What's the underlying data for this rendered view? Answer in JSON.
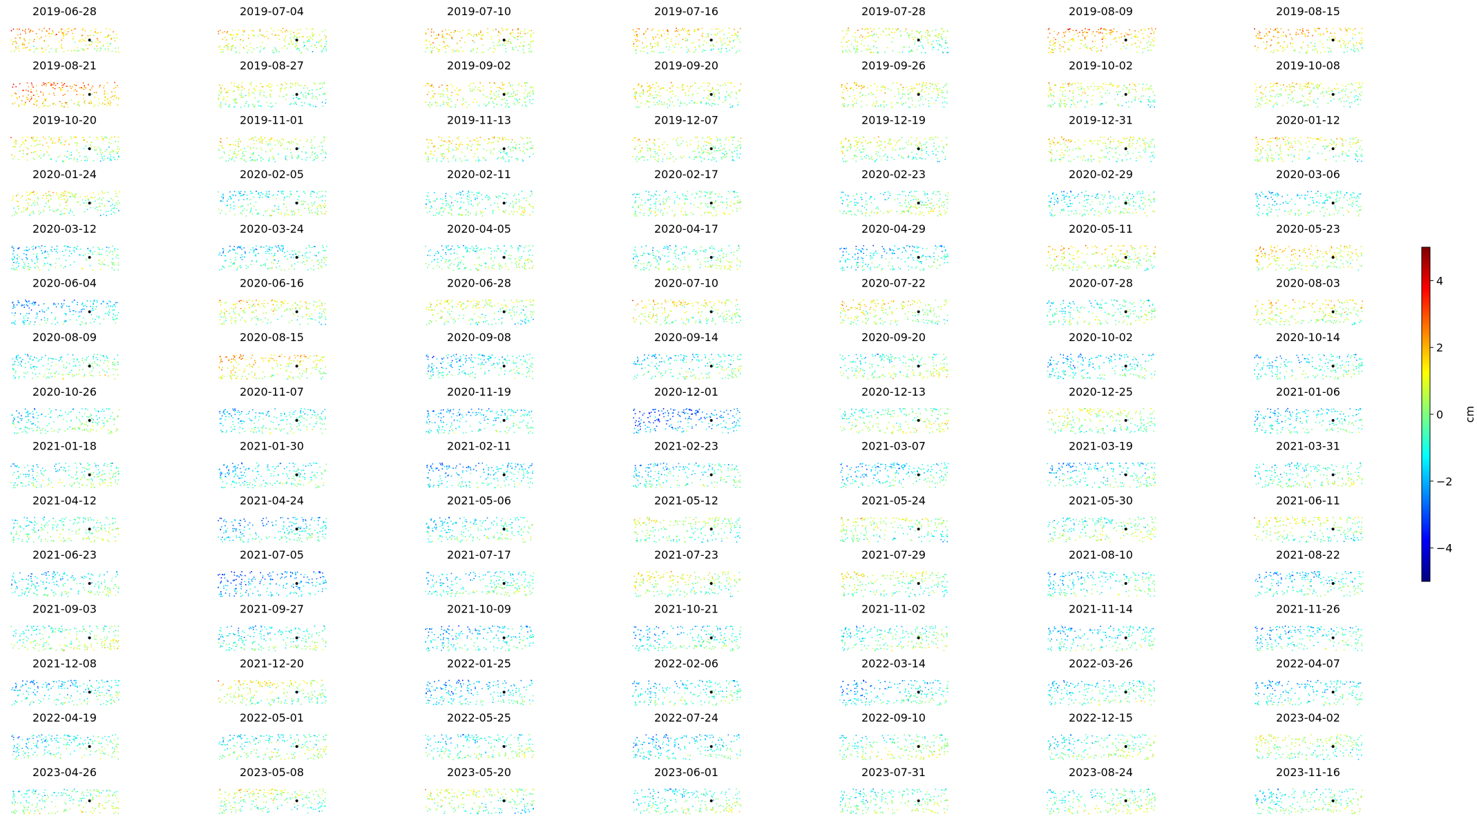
{
  "chart_data": {
    "type": "scatter",
    "title": "",
    "panel_titles": [
      "2019-06-28",
      "2019-07-04",
      "2019-07-10",
      "2019-07-16",
      "2019-07-28",
      "2019-08-09",
      "2019-08-15",
      "2019-08-21",
      "2019-08-27",
      "2019-09-02",
      "2019-09-20",
      "2019-09-26",
      "2019-10-02",
      "2019-10-08",
      "2019-10-20",
      "2019-11-01",
      "2019-11-13",
      "2019-12-07",
      "2019-12-19",
      "2019-12-31",
      "2020-01-12",
      "2020-01-24",
      "2020-02-05",
      "2020-02-11",
      "2020-02-17",
      "2020-02-23",
      "2020-02-29",
      "2020-03-06",
      "2020-03-12",
      "2020-03-24",
      "2020-04-05",
      "2020-04-17",
      "2020-04-29",
      "2020-05-11",
      "2020-05-23",
      "2020-06-04",
      "2020-06-16",
      "2020-06-28",
      "2020-07-10",
      "2020-07-22",
      "2020-07-28",
      "2020-08-03",
      "2020-08-09",
      "2020-08-15",
      "2020-09-08",
      "2020-09-14",
      "2020-09-20",
      "2020-10-02",
      "2020-10-14",
      "2020-10-26",
      "2020-11-07",
      "2020-11-19",
      "2020-12-01",
      "2020-12-13",
      "2020-12-25",
      "2021-01-06",
      "2021-01-18",
      "2021-01-30",
      "2021-02-11",
      "2021-02-23",
      "2021-03-07",
      "2021-03-19",
      "2021-03-31",
      "2021-04-12",
      "2021-04-24",
      "2021-05-06",
      "2021-05-12",
      "2021-05-24",
      "2021-05-30",
      "2021-06-11",
      "2021-06-23",
      "2021-07-05",
      "2021-07-17",
      "2021-07-23",
      "2021-07-29",
      "2021-08-10",
      "2021-08-22",
      "2021-09-03",
      "2021-09-27",
      "2021-10-09",
      "2021-10-21",
      "2021-11-02",
      "2021-11-14",
      "2021-11-26",
      "2021-12-08",
      "2021-12-20",
      "2022-01-25",
      "2022-02-06",
      "2022-03-14",
      "2022-03-26",
      "2022-04-07",
      "2022-04-19",
      "2022-05-01",
      "2022-05-25",
      "2022-07-24",
      "2022-09-10",
      "2022-12-15",
      "2023-04-02",
      "2023-04-26",
      "2023-05-08",
      "2023-05-20",
      "2023-06-01",
      "2023-07-31",
      "2023-08-24",
      "2023-11-16"
    ],
    "panel_mean_cm": [
      1.5,
      0.8,
      1.2,
      1.0,
      0.6,
      1.6,
      1.4,
      2.2,
      0.3,
      0.8,
      0.6,
      0.7,
      0.5,
      0.4,
      0.6,
      0.4,
      0.6,
      0.4,
      0.2,
      0.6,
      0.6,
      0.3,
      -0.6,
      -0.5,
      -0.2,
      -0.4,
      -0.8,
      -0.9,
      -0.9,
      -1.1,
      -0.6,
      -0.5,
      -1.4,
      0.9,
      1.1,
      -1.6,
      0.6,
      0.2,
      0.8,
      0.7,
      -0.6,
      0.9,
      -0.6,
      1.3,
      -1.3,
      -0.9,
      -0.3,
      -1.3,
      -1.1,
      -0.8,
      -1.1,
      -1.3,
      -2.5,
      -0.1,
      0.3,
      -1.2,
      -0.7,
      -1.2,
      -1.6,
      -1.0,
      -1.4,
      -1.2,
      -0.6,
      -0.4,
      -1.6,
      -0.9,
      0.0,
      0.1,
      -0.4,
      0.3,
      -1.1,
      -2.2,
      -1.0,
      0.4,
      0.2,
      -0.9,
      -1.3,
      -0.2,
      -0.9,
      -1.5,
      -1.2,
      -0.6,
      -1.1,
      -1.2,
      -1.3,
      0.6,
      -1.6,
      -1.1,
      -1.5,
      -0.9,
      -1.3,
      -0.9,
      -0.6,
      -0.7,
      -1.4,
      -0.3,
      -0.5,
      0.1,
      -0.2,
      0.0,
      0.1,
      -0.7,
      -0.4,
      -0.4,
      -0.6
    ],
    "colorbar": {
      "label": "cm",
      "range": [
        -5,
        5
      ],
      "ticks": [
        -4,
        -2,
        0,
        2,
        4
      ],
      "colormap": "jet"
    },
    "reference_point_color": "#000000",
    "grid": false
  }
}
